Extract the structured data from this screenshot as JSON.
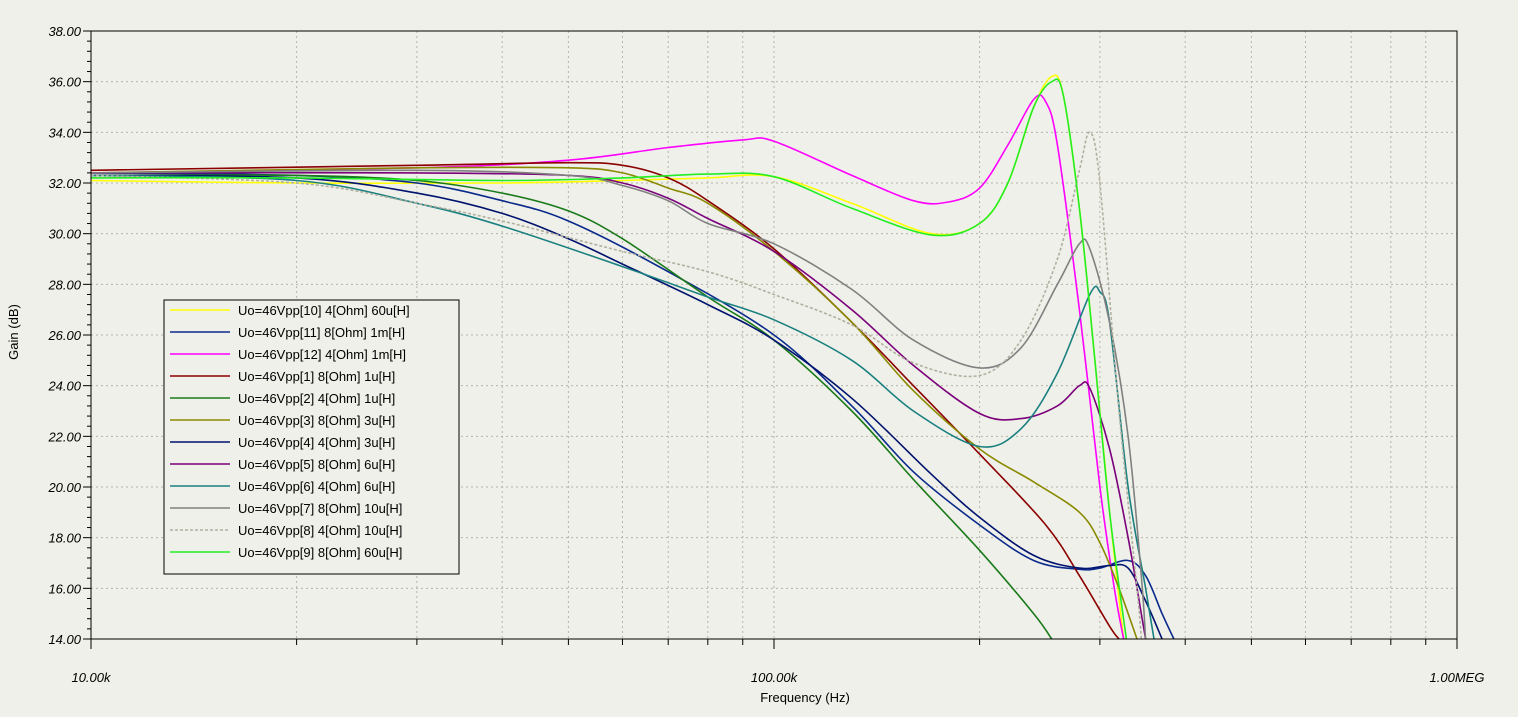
{
  "chart_data": {
    "type": "line",
    "xlabel": "Frequency (Hz)",
    "ylabel": "Gain (dB)",
    "x_scale": "log",
    "xlim": [
      10000,
      1000000
    ],
    "ylim": [
      14,
      38
    ],
    "grid": true,
    "legend_position": "left",
    "y_ticks": [
      {
        "value": 38,
        "label": "38.00"
      },
      {
        "value": 36,
        "label": "36.00"
      },
      {
        "value": 34,
        "label": "34.00"
      },
      {
        "value": 32,
        "label": "32.00"
      },
      {
        "value": 30,
        "label": "30.00"
      },
      {
        "value": 28,
        "label": "28.00"
      },
      {
        "value": 26,
        "label": "26.00"
      },
      {
        "value": 24,
        "label": "24.00"
      },
      {
        "value": 22,
        "label": "22.00"
      },
      {
        "value": 20,
        "label": "20.00"
      },
      {
        "value": 18,
        "label": "18.00"
      },
      {
        "value": 16,
        "label": "16.00"
      },
      {
        "value": 14,
        "label": "14.00"
      }
    ],
    "x_ticks": [
      {
        "value": 10000,
        "label": "10.00k"
      },
      {
        "value": 100000,
        "label": "100.00k"
      },
      {
        "value": 1000000,
        "label": "1.00MEG"
      }
    ],
    "series": [
      {
        "name": "Uo=46Vpp[10]  4[Ohm] 60u[H]",
        "color": "#ffff00",
        "points": [
          [
            10000,
            32.1
          ],
          [
            20000,
            32.0
          ],
          [
            40000,
            32.0
          ],
          [
            60000,
            32.1
          ],
          [
            80000,
            32.2
          ],
          [
            100000,
            32.25
          ],
          [
            130000,
            31.2
          ],
          [
            170000,
            30.0
          ],
          [
            200000,
            30.4
          ],
          [
            220000,
            32.0
          ],
          [
            240000,
            35.0
          ],
          [
            255000,
            36.2
          ],
          [
            265000,
            35.5
          ],
          [
            280000,
            31.0
          ],
          [
            295000,
            25.0
          ],
          [
            310000,
            19.0
          ],
          [
            325000,
            14.0
          ]
        ]
      },
      {
        "name": "Uo=46Vpp[11]  8[Ohm] 1m[H]",
        "color": "#0a2a8c",
        "points": [
          [
            10000,
            32.4
          ],
          [
            20000,
            32.3
          ],
          [
            30000,
            32.0
          ],
          [
            40000,
            31.3
          ],
          [
            50000,
            30.5
          ],
          [
            70000,
            28.5
          ],
          [
            100000,
            26.0
          ],
          [
            130000,
            23.2
          ],
          [
            160000,
            20.6
          ],
          [
            200000,
            18.5
          ],
          [
            240000,
            17.1
          ],
          [
            280000,
            16.75
          ],
          [
            300000,
            16.8
          ],
          [
            330000,
            17.1
          ],
          [
            350000,
            16.5
          ],
          [
            370000,
            15.0
          ],
          [
            385000,
            14.0
          ]
        ]
      },
      {
        "name": "Uo=46Vpp[12]  4[Ohm] 1m[H]",
        "color": "#ff00ff",
        "points": [
          [
            10000,
            32.4
          ],
          [
            30000,
            32.6
          ],
          [
            50000,
            32.9
          ],
          [
            70000,
            33.4
          ],
          [
            90000,
            33.7
          ],
          [
            100000,
            33.65
          ],
          [
            130000,
            32.3
          ],
          [
            160000,
            31.3
          ],
          [
            180000,
            31.25
          ],
          [
            200000,
            31.8
          ],
          [
            220000,
            33.5
          ],
          [
            240000,
            35.3
          ],
          [
            250000,
            35.2
          ],
          [
            260000,
            33.5
          ],
          [
            280000,
            27.0
          ],
          [
            300000,
            20.0
          ],
          [
            315000,
            16.0
          ],
          [
            325000,
            14.0
          ]
        ]
      },
      {
        "name": "Uo=46Vpp[1]  8[Ohm] 1u[H]",
        "color": "#8b0000",
        "points": [
          [
            10000,
            32.5
          ],
          [
            30000,
            32.7
          ],
          [
            50000,
            32.8
          ],
          [
            60000,
            32.7
          ],
          [
            70000,
            32.2
          ],
          [
            80000,
            31.3
          ],
          [
            100000,
            29.4
          ],
          [
            130000,
            26.5
          ],
          [
            160000,
            24.0
          ],
          [
            200000,
            21.3
          ],
          [
            250000,
            18.5
          ],
          [
            280000,
            16.5
          ],
          [
            310000,
            14.5
          ],
          [
            320000,
            14.0
          ]
        ]
      },
      {
        "name": "Uo=46Vpp[2]  4[Ohm] 1u[H]",
        "color": "#1a7a1a",
        "points": [
          [
            10000,
            32.3
          ],
          [
            20000,
            32.3
          ],
          [
            30000,
            32.1
          ],
          [
            40000,
            31.6
          ],
          [
            50000,
            30.9
          ],
          [
            60000,
            29.8
          ],
          [
            80000,
            27.5
          ],
          [
            100000,
            25.8
          ],
          [
            130000,
            23.0
          ],
          [
            160000,
            20.3
          ],
          [
            200000,
            17.5
          ],
          [
            240000,
            15.0
          ],
          [
            255000,
            14.0
          ]
        ]
      },
      {
        "name": "Uo=46Vpp[3]  8[Ohm] 3u[H]",
        "color": "#8a8a00",
        "points": [
          [
            10000,
            32.4
          ],
          [
            30000,
            32.6
          ],
          [
            50000,
            32.6
          ],
          [
            60000,
            32.4
          ],
          [
            70000,
            31.8
          ],
          [
            80000,
            31.2
          ],
          [
            100000,
            29.3
          ],
          [
            130000,
            26.5
          ],
          [
            160000,
            23.8
          ],
          [
            200000,
            21.5
          ],
          [
            240000,
            20.2
          ],
          [
            280000,
            19.0
          ],
          [
            300000,
            17.8
          ],
          [
            320000,
            16.0
          ],
          [
            340000,
            14.0
          ]
        ]
      },
      {
        "name": "Uo=46Vpp[4]  4[Ohm] 3u[H]",
        "color": "#00136e",
        "points": [
          [
            10000,
            32.3
          ],
          [
            20000,
            32.2
          ],
          [
            30000,
            31.6
          ],
          [
            40000,
            30.8
          ],
          [
            50000,
            29.8
          ],
          [
            60000,
            28.8
          ],
          [
            80000,
            27.2
          ],
          [
            100000,
            25.8
          ],
          [
            130000,
            23.5
          ],
          [
            170000,
            20.5
          ],
          [
            200000,
            18.8
          ],
          [
            240000,
            17.3
          ],
          [
            280000,
            16.8
          ],
          [
            310000,
            16.9
          ],
          [
            330000,
            16.8
          ],
          [
            350000,
            15.5
          ],
          [
            370000,
            14.0
          ]
        ]
      },
      {
        "name": "Uo=46Vpp[5]  8[Ohm] 6u[H]",
        "color": "#7b007b",
        "points": [
          [
            10000,
            32.4
          ],
          [
            30000,
            32.4
          ],
          [
            50000,
            32.3
          ],
          [
            60000,
            32.0
          ],
          [
            70000,
            31.4
          ],
          [
            80000,
            30.6
          ],
          [
            100000,
            29.3
          ],
          [
            130000,
            27.0
          ],
          [
            160000,
            24.8
          ],
          [
            200000,
            22.9
          ],
          [
            230000,
            22.7
          ],
          [
            260000,
            23.2
          ],
          [
            280000,
            24.0
          ],
          [
            290000,
            23.9
          ],
          [
            310000,
            21.5
          ],
          [
            330000,
            18.0
          ],
          [
            345000,
            15.0
          ],
          [
            350000,
            14.0
          ]
        ]
      },
      {
        "name": "Uo=46Vpp[6]  4[Ohm] 6u[H]",
        "color": "#1a8080",
        "points": [
          [
            10000,
            32.3
          ],
          [
            20000,
            32.1
          ],
          [
            30000,
            31.2
          ],
          [
            40000,
            30.3
          ],
          [
            60000,
            28.7
          ],
          [
            80000,
            27.5
          ],
          [
            100000,
            26.6
          ],
          [
            130000,
            25.0
          ],
          [
            160000,
            23.0
          ],
          [
            200000,
            21.6
          ],
          [
            230000,
            22.3
          ],
          [
            260000,
            24.5
          ],
          [
            290000,
            27.6
          ],
          [
            300000,
            27.7
          ],
          [
            310000,
            26.5
          ],
          [
            330000,
            20.0
          ],
          [
            350000,
            16.0
          ],
          [
            360000,
            14.0
          ]
        ]
      },
      {
        "name": "Uo=46Vpp[7]  8[Ohm] 10u[H]",
        "color": "#808080",
        "points": [
          [
            10000,
            32.4
          ],
          [
            30000,
            32.5
          ],
          [
            50000,
            32.3
          ],
          [
            60000,
            31.9
          ],
          [
            70000,
            31.3
          ],
          [
            80000,
            30.4
          ],
          [
            100000,
            29.6
          ],
          [
            130000,
            27.8
          ],
          [
            160000,
            25.8
          ],
          [
            200000,
            24.7
          ],
          [
            230000,
            25.5
          ],
          [
            260000,
            28.0
          ],
          [
            280000,
            29.6
          ],
          [
            290000,
            29.4
          ],
          [
            310000,
            26.5
          ],
          [
            330000,
            22.0
          ],
          [
            345000,
            16.5
          ],
          [
            350000,
            14.0
          ]
        ]
      },
      {
        "name": "Uo=46Vpp[8]  4[Ohm] 10u[H]",
        "color": "#b0b0a0",
        "dashed": true,
        "points": [
          [
            10000,
            32.3
          ],
          [
            20000,
            32.0
          ],
          [
            30000,
            31.2
          ],
          [
            40000,
            30.5
          ],
          [
            60000,
            29.3
          ],
          [
            80000,
            28.5
          ],
          [
            100000,
            27.6
          ],
          [
            130000,
            26.4
          ],
          [
            160000,
            24.9
          ],
          [
            200000,
            24.4
          ],
          [
            230000,
            25.8
          ],
          [
            260000,
            29.0
          ],
          [
            280000,
            32.5
          ],
          [
            290000,
            34.0
          ],
          [
            300000,
            32.0
          ],
          [
            320000,
            23.0
          ],
          [
            340000,
            16.0
          ],
          [
            345000,
            14.0
          ]
        ]
      },
      {
        "name": "Uo=46Vpp[9]  8[Ohm] 60u[H]",
        "color": "#22ee22",
        "points": [
          [
            10000,
            32.2
          ],
          [
            20000,
            32.2
          ],
          [
            40000,
            32.1
          ],
          [
            60000,
            32.2
          ],
          [
            80000,
            32.35
          ],
          [
            100000,
            32.25
          ],
          [
            130000,
            31.0
          ],
          [
            170000,
            29.95
          ],
          [
            200000,
            30.4
          ],
          [
            220000,
            32.0
          ],
          [
            240000,
            35.0
          ],
          [
            255000,
            36.0
          ],
          [
            265000,
            35.5
          ],
          [
            280000,
            31.0
          ],
          [
            295000,
            25.0
          ],
          [
            310000,
            19.0
          ],
          [
            328000,
            14.0
          ]
        ]
      }
    ]
  }
}
